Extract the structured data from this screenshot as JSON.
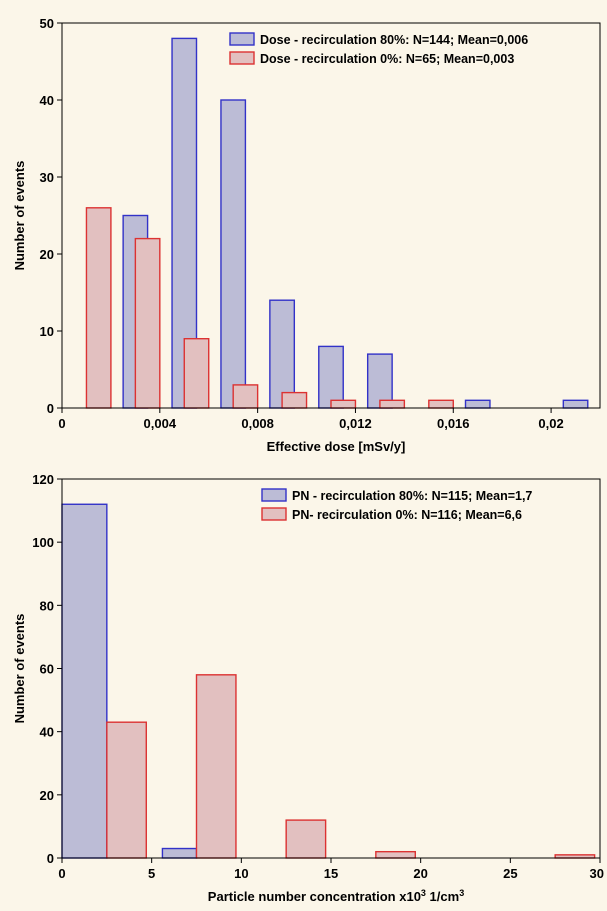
{
  "chart_data": [
    {
      "type": "bar",
      "xlabel": "Effective dose [mSv/y]",
      "ylabel": "Number of events",
      "xlim": [
        0,
        0.022
      ],
      "ylim": [
        0,
        50
      ],
      "x_ticks": [
        0,
        0.004,
        0.008,
        0.012,
        0.016,
        0.02
      ],
      "x_tick_labels": [
        "0",
        "0,004",
        "0,008",
        "0,012",
        "0,016",
        "0,02"
      ],
      "y_ticks": [
        0,
        10,
        20,
        30,
        40,
        50
      ],
      "y_tick_labels": [
        "0",
        "10",
        "20",
        "30",
        "40",
        "50"
      ],
      "grid": false,
      "legend_position": "top-right",
      "series": [
        {
          "name": "Dose - recirculation 80%: N=144; Mean=0,006",
          "fill": "#bcbcd6",
          "stroke": "#3232c8",
          "bins": [
            {
              "x0": 0.0015,
              "x1": 0.0025,
              "value": 0
            },
            {
              "x0": 0.0025,
              "x1": 0.0035,
              "value": 25
            },
            {
              "x0": 0.0045,
              "x1": 0.0055,
              "value": 48
            },
            {
              "x0": 0.0065,
              "x1": 0.0075,
              "value": 40
            },
            {
              "x0": 0.0085,
              "x1": 0.0095,
              "value": 14
            },
            {
              "x0": 0.0105,
              "x1": 0.0115,
              "value": 8
            },
            {
              "x0": 0.0125,
              "x1": 0.0135,
              "value": 7
            },
            {
              "x0": 0.0165,
              "x1": 0.0175,
              "value": 1
            },
            {
              "x0": 0.0205,
              "x1": 0.0215,
              "value": 1
            }
          ]
        },
        {
          "name": "Dose - recirculation 0%: N=65; Mean=0,003",
          "fill": "#e2c0c0",
          "stroke": "#dc3232",
          "bins": [
            {
              "x0": 0.001,
              "x1": 0.002,
              "value": 26
            },
            {
              "x0": 0.003,
              "x1": 0.004,
              "value": 22
            },
            {
              "x0": 0.005,
              "x1": 0.006,
              "value": 9
            },
            {
              "x0": 0.007,
              "x1": 0.008,
              "value": 3
            },
            {
              "x0": 0.009,
              "x1": 0.01,
              "value": 2
            },
            {
              "x0": 0.011,
              "x1": 0.012,
              "value": 1
            },
            {
              "x0": 0.013,
              "x1": 0.014,
              "value": 1
            },
            {
              "x0": 0.015,
              "x1": 0.016,
              "value": 1
            }
          ]
        }
      ]
    },
    {
      "type": "bar",
      "xlabel": "Particle number concentration x10",
      "xlabel_sup1": "3",
      "xlabel_unit": " 1/cm",
      "xlabel_sup2": "3",
      "ylabel": "Number of events",
      "xlim": [
        0,
        30
      ],
      "ylim": [
        0,
        120
      ],
      "x_ticks": [
        0,
        5,
        10,
        15,
        20,
        25,
        30
      ],
      "x_tick_labels": [
        "0",
        "5",
        "10",
        "15",
        "20",
        "25",
        "30"
      ],
      "y_ticks": [
        0,
        20,
        40,
        60,
        80,
        100,
        120
      ],
      "y_tick_labels": [
        "0",
        "20",
        "40",
        "60",
        "80",
        "100",
        "120"
      ],
      "grid": false,
      "legend_position": "top-right",
      "series": [
        {
          "name": "PN - recirculation 80%: N=115; Mean=1,7",
          "fill": "#bcbcd6",
          "stroke": "#3232c8",
          "bins": [
            {
              "x0": 0,
              "x1": 2.5,
              "value": 112
            },
            {
              "x0": 5.6,
              "x1": 7.5,
              "value": 3
            }
          ]
        },
        {
          "name": "PN- recirculation 0%: N=116; Mean=6,6",
          "fill": "#e2c0c0",
          "stroke": "#dc3232",
          "bins": [
            {
              "x0": 2.5,
              "x1": 4.7,
              "value": 43
            },
            {
              "x0": 7.5,
              "x1": 9.7,
              "value": 58
            },
            {
              "x0": 12.5,
              "x1": 14.7,
              "value": 12
            },
            {
              "x0": 17.5,
              "x1": 19.7,
              "value": 2
            },
            {
              "x0": 27.5,
              "x1": 29.7,
              "value": 1
            }
          ]
        }
      ]
    }
  ]
}
